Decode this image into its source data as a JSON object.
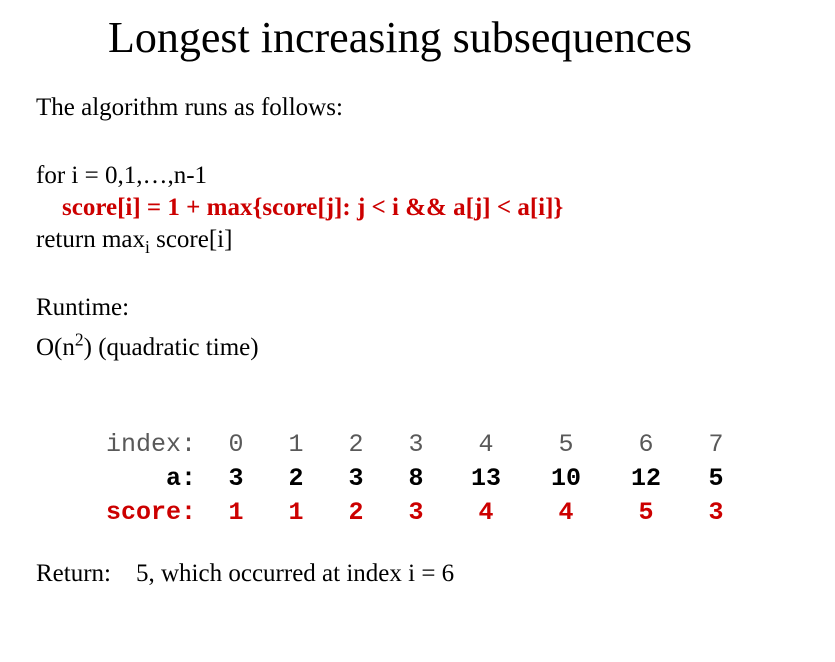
{
  "title": "Longest increasing subsequences",
  "intro": "The algorithm runs as follows:",
  "algo": {
    "line1": "for i = 0,1,…,n-1",
    "line2_red": "score[i] = 1 + max{score[j]:  j < i && a[j] < a[i]}",
    "line3_pre": "return max",
    "line3_sub": "i",
    "line3_post": " score[i]"
  },
  "runtime": {
    "label": "Runtime:",
    "value_pre": "O(n",
    "value_sup": "2",
    "value_post": ")   (quadratic time)"
  },
  "table": {
    "labels": {
      "index": "index:",
      "a": "a:",
      "score": "score:"
    },
    "columns": [
      {
        "w": "w60"
      },
      {
        "w": "w60"
      },
      {
        "w": "w60"
      },
      {
        "w": "w60"
      },
      {
        "w": "w80"
      },
      {
        "w": "w80"
      },
      {
        "w": "w80"
      },
      {
        "w": "w60"
      }
    ],
    "index": [
      "0",
      "1",
      "2",
      "3",
      "4",
      "5",
      "6",
      "7"
    ],
    "a": [
      "3",
      "2",
      "3",
      "8",
      "13",
      "10",
      "12",
      "5"
    ],
    "score": [
      "1",
      "1",
      "2",
      "3",
      "4",
      "4",
      "5",
      "3"
    ],
    "colors": {
      "index_label": "#595959",
      "index_values": "#595959",
      "a_label": "#000000",
      "a_values": "#000000",
      "score_label": "#cc0000",
      "score_values": "#cc0000"
    },
    "weights": {
      "index": "400",
      "a": "700",
      "score": "700"
    }
  },
  "return": {
    "label": "Return:",
    "value": "5, which occurred at index i = 6"
  }
}
